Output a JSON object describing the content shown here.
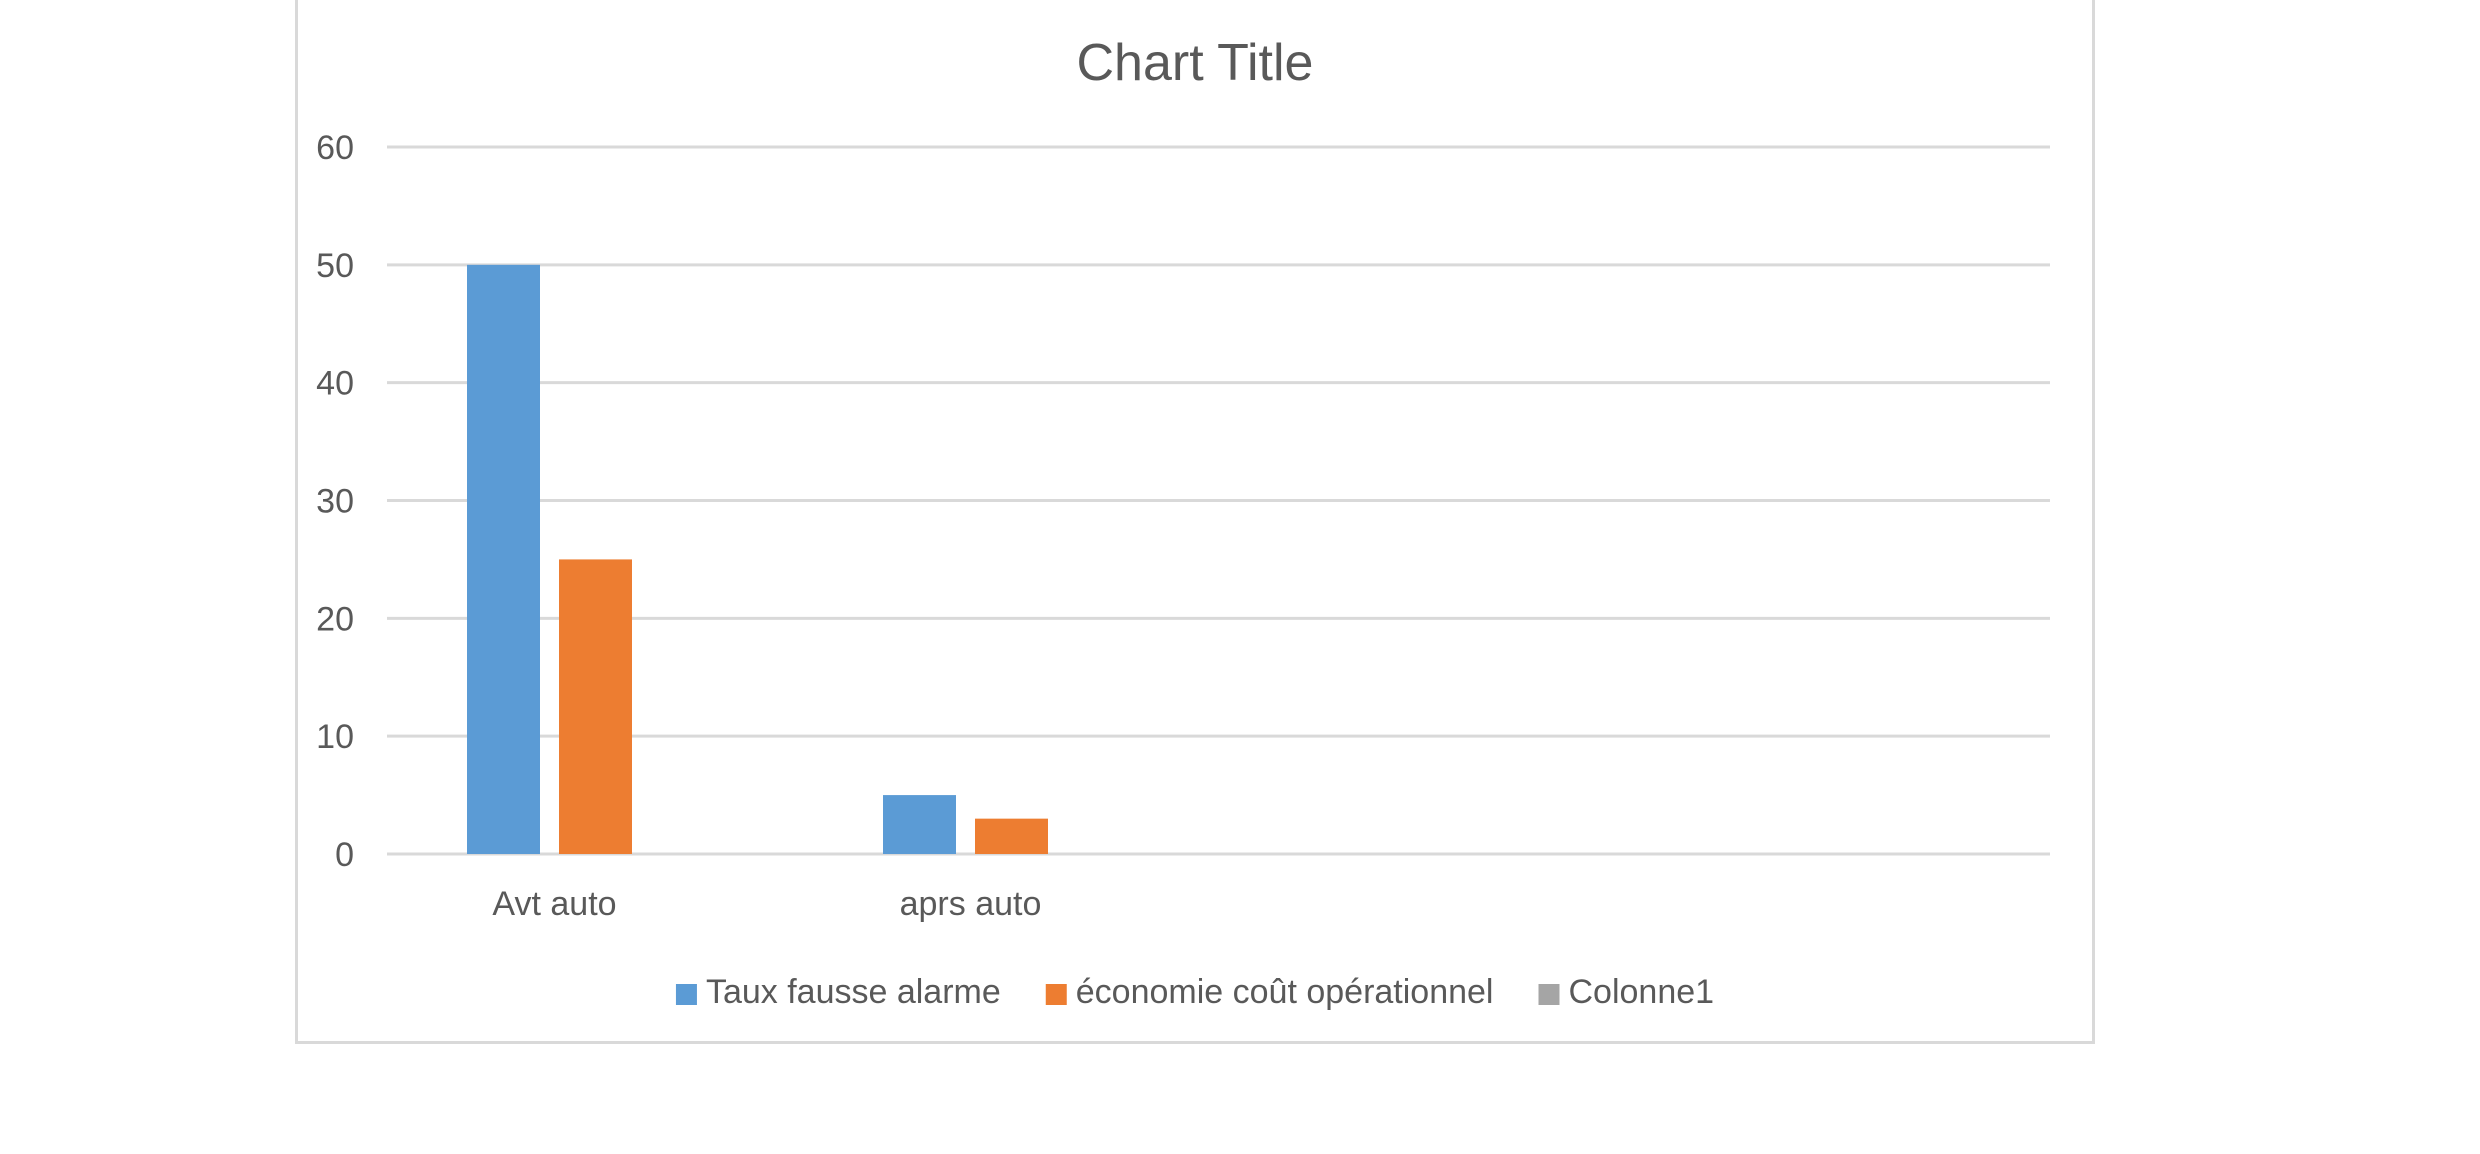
{
  "chart_data": {
    "type": "bar",
    "title": "Chart Title",
    "xlabel": "",
    "ylabel": "",
    "categories": [
      "Avt auto",
      "aprs auto"
    ],
    "series": [
      {
        "name": "Taux fausse alarme",
        "values": [
          50,
          5
        ],
        "color": "#5b9bd5"
      },
      {
        "name": "économie coût opérationnel",
        "values": [
          25,
          3
        ],
        "color": "#ed7d31"
      },
      {
        "name": "Colonne1",
        "values": [
          null,
          null
        ],
        "color": "#a5a5a5"
      }
    ],
    "ylim": [
      0,
      60
    ],
    "yticks": [
      0,
      10,
      20,
      30,
      40,
      50,
      60
    ],
    "grid": true,
    "legend": "bottom"
  }
}
